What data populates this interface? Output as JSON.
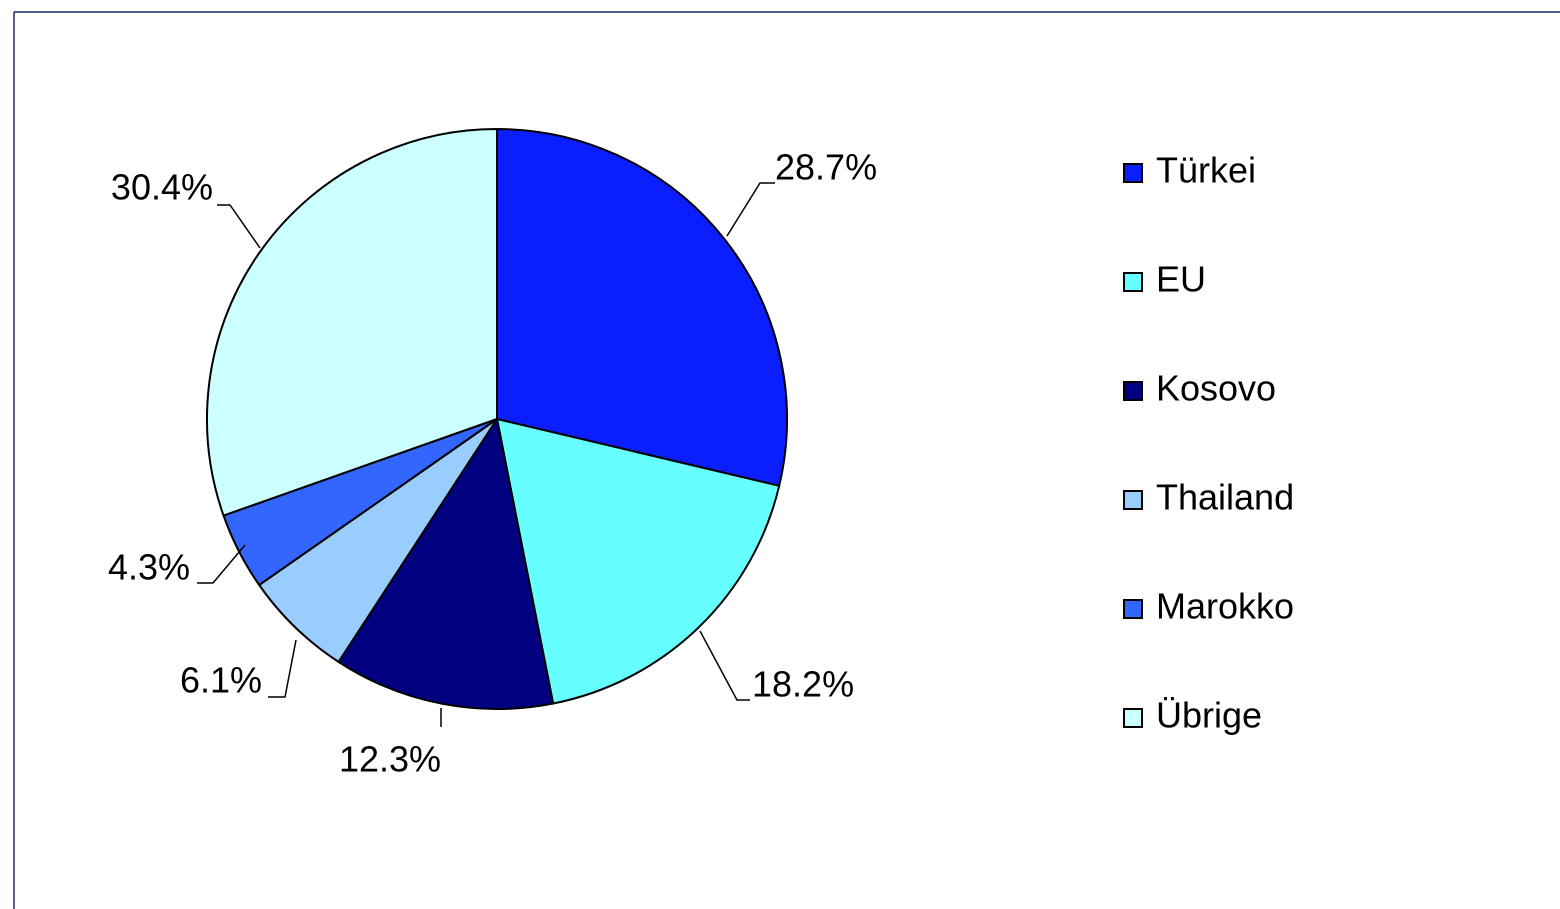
{
  "chart_data": {
    "type": "pie",
    "categories": [
      "Türkei",
      "EU",
      "Kosovo",
      "Thailand",
      "Marokko",
      "Übrige"
    ],
    "values": [
      28.7,
      18.2,
      12.3,
      6.1,
      4.3,
      30.4
    ],
    "value_labels": [
      "28.7%",
      "18.2%",
      "12.3%",
      "6.1%",
      "4.3%",
      "30.4%"
    ],
    "colors": [
      "#0a1eff",
      "#66ffff",
      "#000080",
      "#99ccff",
      "#3366ff",
      "#ccffff"
    ],
    "legend": "right"
  }
}
